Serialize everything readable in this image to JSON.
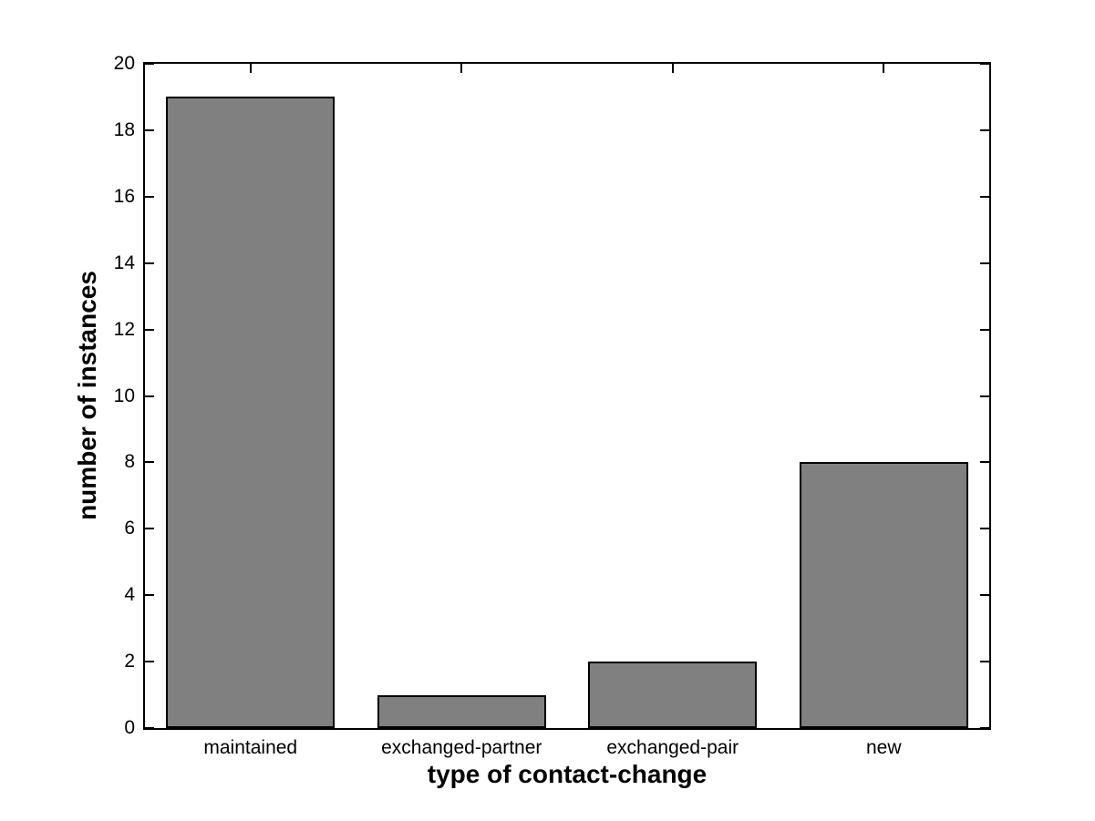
{
  "chart_data": {
    "type": "bar",
    "categories": [
      "maintained",
      "exchanged-partner",
      "exchanged-pair",
      "new"
    ],
    "values": [
      19,
      1,
      2,
      8
    ],
    "title": "",
    "xlabel": "type of contact-change",
    "ylabel": "number of instances",
    "ylim": [
      0,
      20
    ],
    "yticks": [
      0,
      2,
      4,
      6,
      8,
      10,
      12,
      14,
      16,
      18,
      20
    ],
    "ytick_labels": [
      "0",
      "2",
      "4",
      "6",
      "8",
      "10",
      "12",
      "14",
      "16",
      "18",
      "20"
    ],
    "bar_width_fraction": 0.8,
    "bar_color": "#808080",
    "bar_edge_color": "#000000",
    "axis_color": "#000000",
    "background_color": "#ffffff",
    "grid": false,
    "legend": null,
    "tick_direction": "in"
  }
}
